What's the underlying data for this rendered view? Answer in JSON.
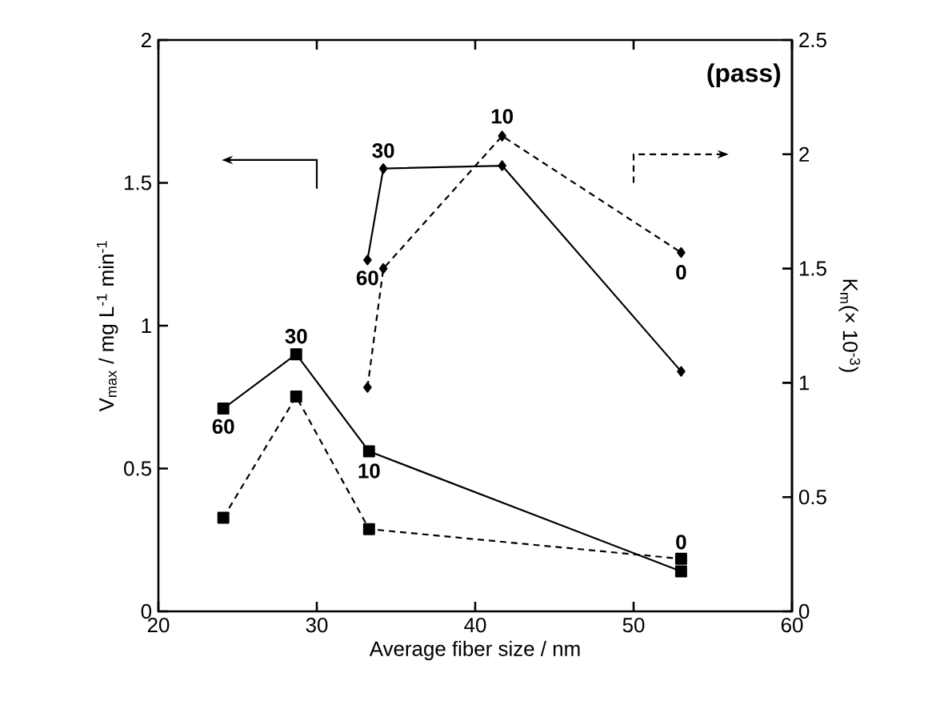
{
  "chart_data": {
    "type": "line",
    "xlabel": "Average fiber size / nm",
    "ylabel": "V$_{max}$ / mg L$^{-1}$ min$^{-1}$",
    "y2label": "K$_{m}$(× 10$^{-3}$)",
    "xlim": [
      20,
      60
    ],
    "xticks": [
      20,
      30,
      40,
      50,
      60
    ],
    "ylim": [
      0,
      2
    ],
    "yticks": [
      0,
      0.5,
      1,
      1.5,
      2
    ],
    "y2lim": [
      0,
      2.5
    ],
    "y2ticks": [
      0,
      0.5,
      1,
      1.5,
      2,
      2.5
    ],
    "grid": false,
    "series": [
      {
        "color": "#000000",
        "marker": "square",
        "line_style": "solid",
        "x": [
          24.1,
          28.7,
          33.3,
          53.0
        ],
        "values": [
          0.71,
          0.9,
          0.56,
          0.14
        ]
      },
      {
        "color": "#000000",
        "marker": "square",
        "line_style": "dashed",
        "axis": "y2",
        "x": [
          24.1,
          28.7,
          33.3,
          53.0
        ],
        "values": [
          0.41,
          0.94,
          0.36,
          0.23
        ]
      },
      {
        "color": "#000000",
        "marker": "diamond",
        "line_style": "solid",
        "x": [
          33.2,
          34.2,
          41.7,
          53.0
        ],
        "values": [
          1.23,
          1.55,
          1.56,
          0.84
        ]
      },
      {
        "color": "#000000",
        "marker": "diamond",
        "line_style": "dashed",
        "axis": "y2",
        "x": [
          33.2,
          34.2,
          41.7,
          53.0
        ],
        "values": [
          0.98,
          1.5,
          2.08,
          1.57
        ]
      }
    ],
    "annotations": [
      "(pass)",
      {
        "text": "60",
        "x": 24.1,
        "y": 0.71
      },
      {
        "text": "30",
        "x": 28.7,
        "y": 0.9
      },
      {
        "text": "10",
        "x": 33.3,
        "y": 0.56
      },
      {
        "text": "0",
        "x": 53.0,
        "y": 0.18
      },
      {
        "text": "60",
        "x": 33.2,
        "y": 1.23
      },
      {
        "text": "30",
        "x": 34.2,
        "y": 1.55
      },
      {
        "text": "10",
        "x": 41.7,
        "y": 1.67
      },
      {
        "text": "0",
        "x": 53.0,
        "y": 1.25
      }
    ]
  }
}
